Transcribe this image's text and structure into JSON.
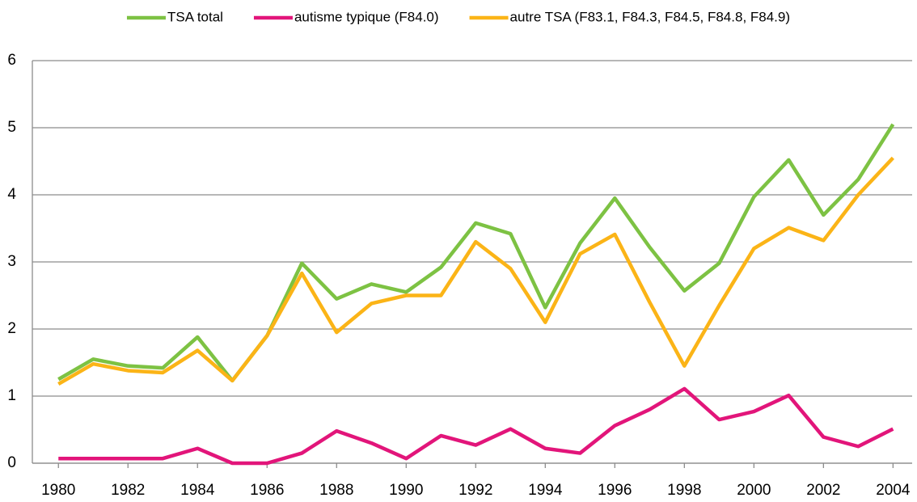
{
  "chart_data": {
    "type": "line",
    "x": [
      1980,
      1981,
      1982,
      1983,
      1984,
      1985,
      1986,
      1987,
      1988,
      1989,
      1990,
      1991,
      1992,
      1993,
      1994,
      1995,
      1996,
      1997,
      1998,
      1999,
      2000,
      2001,
      2002,
      2003,
      2004
    ],
    "series": [
      {
        "name": "TSA total",
        "color": "#7dc243",
        "values": [
          1.25,
          1.55,
          1.45,
          1.42,
          1.88,
          1.23,
          1.9,
          2.98,
          2.45,
          2.67,
          2.55,
          2.92,
          3.58,
          3.42,
          2.32,
          3.28,
          3.95,
          3.22,
          2.57,
          2.98,
          3.97,
          4.52,
          3.7,
          4.23,
          5.05
        ]
      },
      {
        "name": "autisme typique (F84.0)",
        "color": "#e2157a",
        "values": [
          0.07,
          0.07,
          0.07,
          0.07,
          0.22,
          0,
          0,
          0.15,
          0.48,
          0.3,
          0.07,
          0.41,
          0.27,
          0.51,
          0.22,
          0.15,
          0.56,
          0.8,
          1.11,
          0.65,
          0.77,
          1.01,
          0.39,
          0.25,
          0.51
        ]
      },
      {
        "name": "autre TSA (F83.1, F84.3, F84.5, F84.8, F84.9)",
        "color": "#fbb417",
        "values": [
          1.18,
          1.48,
          1.38,
          1.35,
          1.68,
          1.23,
          1.9,
          2.83,
          1.95,
          2.38,
          2.5,
          2.5,
          3.3,
          2.9,
          2.1,
          3.12,
          3.41,
          2.4,
          1.45,
          2.35,
          3.2,
          3.51,
          3.32,
          4.0,
          4.55
        ]
      }
    ],
    "xlim": [
      1979.25,
      2004.55
    ],
    "xticks": [
      1980,
      1982,
      1984,
      1986,
      1988,
      1990,
      1992,
      1994,
      1996,
      1998,
      2000,
      2002,
      2004
    ],
    "ylim": [
      0,
      6
    ],
    "yticks": [
      0,
      1,
      2,
      3,
      4,
      5,
      6
    ],
    "grid": true,
    "legend": "top"
  }
}
